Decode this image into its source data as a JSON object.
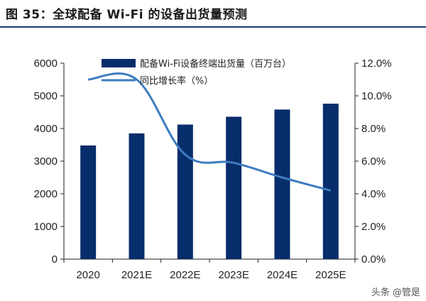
{
  "figure": {
    "title": "图 35：全球配备 Wi-Fi 的设备出货量预测",
    "watermark": "头条 @管是"
  },
  "colors": {
    "bar": "#082d6b",
    "line": "#3d7cc0",
    "title_rule": "#1a3f73"
  },
  "chart_data": {
    "type": "bar",
    "categories": [
      "2020",
      "2021E",
      "2022E",
      "2023E",
      "2024E",
      "2025E"
    ],
    "series": [
      {
        "name": "配备Wi-Fi设备终端出货量（百万台）",
        "kind": "bar",
        "axis": "left",
        "values": [
          3480,
          3850,
          4120,
          4360,
          4580,
          4760
        ]
      },
      {
        "name": "同比增长率（%）",
        "kind": "line",
        "axis": "right",
        "values": [
          11.0,
          11.0,
          6.4,
          5.9,
          5.0,
          4.2
        ]
      }
    ],
    "ylim_left": [
      0,
      6000
    ],
    "yticks_left": [
      "0",
      "1000",
      "2000",
      "3000",
      "4000",
      "5000",
      "6000"
    ],
    "ylim_right": [
      0,
      12
    ],
    "yticks_right": [
      "0.0%",
      "2.0%",
      "4.0%",
      "6.0%",
      "8.0%",
      "10.0%",
      "12.0%"
    ],
    "legend_position": "top-center",
    "grid": false
  }
}
